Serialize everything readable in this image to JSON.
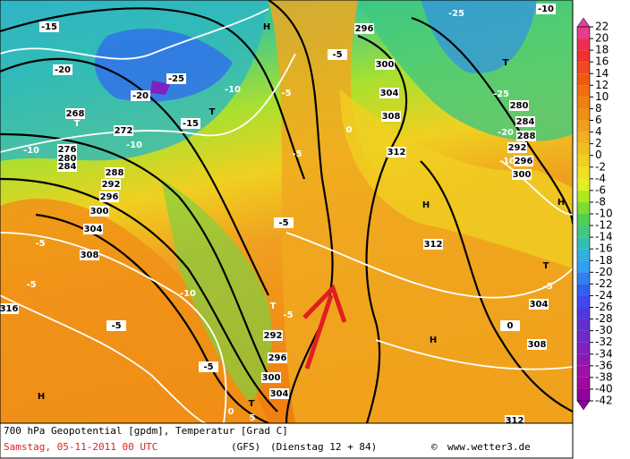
{
  "map": {
    "labels": [
      "-15",
      "-20",
      "-25",
      "-20",
      "268",
      "T",
      "-15",
      "T",
      "272",
      "-10",
      "-10",
      "276",
      "280",
      "284",
      "288",
      "292",
      "296",
      "300",
      "304",
      "308",
      "-5",
      "-5",
      "316",
      "-10",
      "-5",
      "-5",
      "H",
      "300",
      "296",
      "292",
      "T",
      "-5",
      "304",
      "0",
      "5",
      "T",
      "-5",
      "300",
      "304",
      "308",
      "312",
      "296",
      "H",
      "-10",
      "-5",
      "-5",
      "0",
      "-5",
      "H",
      "312",
      "T",
      "-25",
      "-10",
      "-25",
      "280",
      "284",
      "-20",
      "288",
      "292",
      "296",
      "300",
      "-10",
      "H",
      "T",
      "-5",
      "304",
      "0",
      "308",
      "H",
      "312"
    ]
  },
  "colorbar": {
    "ticks": [
      22,
      20,
      18,
      16,
      14,
      12,
      10,
      8,
      6,
      4,
      2,
      0,
      -2,
      -4,
      -6,
      -8,
      -10,
      -12,
      -14,
      -16,
      -18,
      -20,
      -22,
      -24,
      -26,
      -28,
      -30,
      -32,
      -34,
      -36,
      -38,
      -40,
      -42
    ],
    "colors": [
      "#e040a0",
      "#e83c8c",
      "#ec3050",
      "#f03030",
      "#f04820",
      "#f05a10",
      "#f06e10",
      "#f08010",
      "#f09018",
      "#f0a020",
      "#f0b020",
      "#f0c020",
      "#f0d020",
      "#f0e020",
      "#e0f020",
      "#b0e820",
      "#80dc30",
      "#50d050",
      "#40c880",
      "#30c0b0",
      "#30b0e0",
      "#30a0f0",
      "#3080f0",
      "#3060f0",
      "#4048f0",
      "#5038e0",
      "#6030d0",
      "#7028c8",
      "#8020c0",
      "#9018b0",
      "#a010a8",
      "#a008a0",
      "#9000a0"
    ]
  },
  "footer": {
    "title": "700 hPa Geopotential [gpdm], Temperatur [Grad C]",
    "date": "Samstag, 05-11-2011  00 UTC",
    "model": "(GFS)",
    "run": "(Dienstag 12 + 84)",
    "copyright": "©",
    "site": "www.wetter3.de"
  }
}
